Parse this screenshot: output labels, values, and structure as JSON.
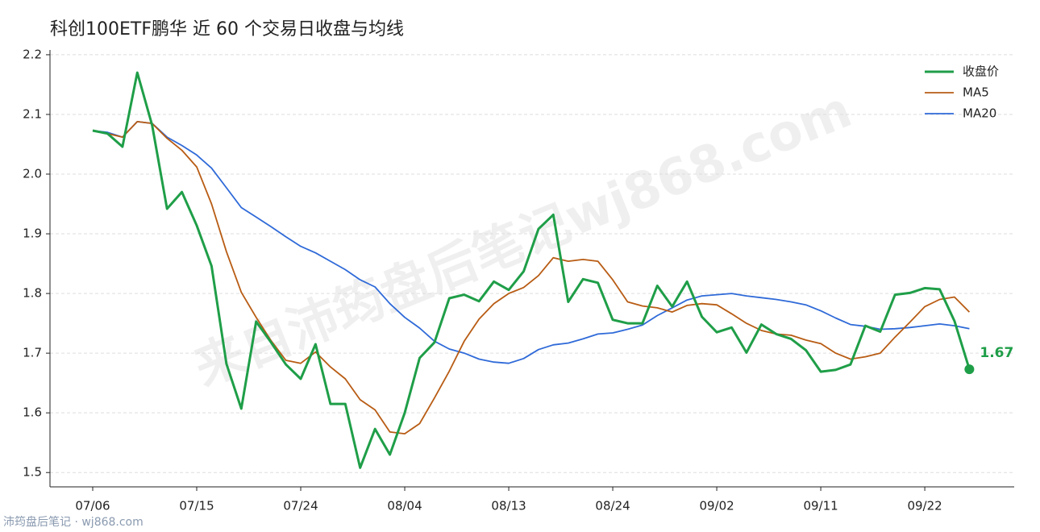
{
  "chart_data": {
    "type": "line",
    "title": "科创100ETF鹏华 近 60 个交易日收盘与均线",
    "watermark": "来自沛筠盘后笔记wj868.com",
    "footer": "沛筠盘后笔记 · wj868.com",
    "categories": [
      "07/06",
      null,
      null,
      null,
      null,
      null,
      null,
      "07/15",
      null,
      null,
      null,
      null,
      null,
      null,
      "07/24",
      null,
      null,
      null,
      null,
      null,
      null,
      "08/04",
      null,
      null,
      null,
      null,
      null,
      null,
      "08/13",
      null,
      null,
      null,
      null,
      null,
      null,
      "08/24",
      null,
      null,
      null,
      null,
      null,
      null,
      "09/02",
      null,
      null,
      null,
      null,
      null,
      null,
      "09/11",
      null,
      null,
      null,
      null,
      null,
      null,
      "09/22",
      null,
      null,
      null
    ],
    "series": [
      {
        "name": "收盘价",
        "color": "#1f9e48",
        "values": [
          2.073,
          2.068,
          2.046,
          2.17,
          2.082,
          1.942,
          1.97,
          1.914,
          1.846,
          1.682,
          1.607,
          1.753,
          1.718,
          1.681,
          1.657,
          1.715,
          1.615,
          1.615,
          1.508,
          1.573,
          1.53,
          1.6,
          1.692,
          1.718,
          1.792,
          1.798,
          1.787,
          1.82,
          1.806,
          1.837,
          1.908,
          1.932,
          1.786,
          1.824,
          1.818,
          1.756,
          1.75,
          1.75,
          1.813,
          1.778,
          1.82,
          1.761,
          1.735,
          1.743,
          1.701,
          1.748,
          1.732,
          1.724,
          1.705,
          1.669,
          1.672,
          1.681,
          1.746,
          1.736,
          1.798,
          1.801,
          1.809,
          1.807,
          1.754,
          1.673
        ],
        "value_labels": [
          null,
          null,
          null,
          null,
          null,
          null,
          null,
          null,
          null,
          null,
          null,
          null,
          null,
          null,
          null,
          null,
          null,
          null,
          null,
          null,
          null,
          null,
          null,
          null,
          null,
          null,
          null,
          null,
          null,
          null,
          null,
          null,
          null,
          null,
          null,
          null,
          null,
          null,
          null,
          null,
          null,
          null,
          null,
          null,
          null,
          null,
          null,
          null,
          null,
          null,
          null,
          null,
          null,
          null,
          null,
          null,
          null,
          null,
          null,
          "1.67"
        ]
      },
      {
        "name": "MA5",
        "color": "#b85c14",
        "values": [
          2.073,
          2.068,
          2.062,
          2.088,
          2.085,
          2.06,
          2.04,
          2.012,
          1.95,
          1.87,
          1.802,
          1.76,
          1.721,
          1.688,
          1.683,
          1.702,
          1.677,
          1.657,
          1.622,
          1.605,
          1.568,
          1.565,
          1.582,
          1.625,
          1.67,
          1.72,
          1.757,
          1.783,
          1.8,
          1.81,
          1.83,
          1.86,
          1.854,
          1.857,
          1.854,
          1.823,
          1.786,
          1.779,
          1.776,
          1.769,
          1.78,
          1.783,
          1.781,
          1.766,
          1.75,
          1.738,
          1.732,
          1.73,
          1.722,
          1.716,
          1.7,
          1.69,
          1.694,
          1.7,
          1.727,
          1.752,
          1.778,
          1.79,
          1.794,
          1.769
        ]
      },
      {
        "name": "MA20",
        "color": "#2f6ad8",
        "values": [
          2.073,
          2.07,
          2.062,
          2.088,
          2.085,
          2.062,
          2.048,
          2.032,
          2.01,
          1.977,
          1.944,
          1.928,
          1.912,
          1.895,
          1.879,
          1.868,
          1.854,
          1.84,
          1.823,
          1.811,
          1.783,
          1.76,
          1.742,
          1.72,
          1.707,
          1.7,
          1.69,
          1.685,
          1.683,
          1.691,
          1.706,
          1.714,
          1.717,
          1.724,
          1.732,
          1.734,
          1.74,
          1.747,
          1.763,
          1.776,
          1.789,
          1.796,
          1.798,
          1.8,
          1.796,
          1.793,
          1.79,
          1.786,
          1.781,
          1.771,
          1.759,
          1.748,
          1.745,
          1.74,
          1.741,
          1.743,
          1.746,
          1.749,
          1.746,
          1.741
        ]
      }
    ],
    "ylim": [
      1.476,
      2.208
    ],
    "yticks": [
      1.5,
      1.6,
      1.7,
      1.8,
      1.9,
      {
        "value": 2,
        "label": "2.0"
      },
      2.1,
      2.2
    ],
    "grid": true,
    "legend": "upper-right"
  }
}
